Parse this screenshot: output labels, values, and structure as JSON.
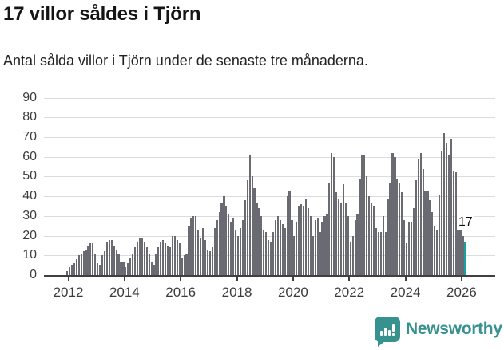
{
  "header": {
    "title": "17 villor såldes i Tjörn",
    "subtitle": "Antal sålda villor i Tjörn under de senaste tre månaderna."
  },
  "annotation": {
    "latest_label": "17"
  },
  "footer": {
    "brand": "Newsworthy"
  },
  "colors": {
    "bar": "#6a6a72",
    "highlight": "#16a0a0",
    "grid": "#dcdcdc",
    "axis": "#404040",
    "text": "#222222",
    "logo": "#37918e"
  },
  "chart_data": {
    "type": "bar",
    "title": "Antal sålda villor i Tjörn under de senaste tre månaderna",
    "frequency": "monthly",
    "x_range_estimate": "2011-12 to 2026-02",
    "x_tick_labels": [
      "2012",
      "2014",
      "2016",
      "2018",
      "2020",
      "2022",
      "2024",
      "2026"
    ],
    "y_ticks": [
      0,
      10,
      20,
      30,
      40,
      50,
      60,
      70,
      80,
      90
    ],
    "ylim": [
      0,
      90
    ],
    "grid": true,
    "values": [
      2,
      4,
      5,
      6,
      8,
      10,
      11,
      12,
      13,
      15,
      16,
      16,
      11,
      6,
      5,
      10,
      12,
      17,
      18,
      18,
      15,
      13,
      11,
      7,
      7,
      4,
      6,
      9,
      11,
      14,
      17,
      19,
      19,
      17,
      14,
      11,
      7,
      5,
      11,
      14,
      17,
      18,
      16,
      15,
      14,
      20,
      20,
      18,
      16,
      9,
      10,
      11,
      25,
      29,
      30,
      30,
      23,
      19,
      24,
      18,
      13,
      12,
      14,
      24,
      28,
      32,
      37,
      40,
      35,
      31,
      27,
      29,
      23,
      20,
      24,
      28,
      38,
      48,
      61,
      50,
      44,
      37,
      34,
      30,
      23,
      22,
      18,
      17,
      22,
      28,
      30,
      28,
      26,
      24,
      40,
      43,
      28,
      20,
      27,
      35,
      36,
      35,
      39,
      34,
      30,
      20,
      28,
      29,
      22,
      27,
      30,
      31,
      47,
      62,
      60,
      42,
      39,
      37,
      46,
      37,
      30,
      17,
      20,
      28,
      31,
      49,
      61,
      61,
      50,
      40,
      37,
      35,
      24,
      22,
      22,
      30,
      22,
      39,
      47,
      62,
      60,
      49,
      47,
      42,
      28,
      16,
      27,
      27,
      34,
      48,
      59,
      62,
      54,
      43,
      43,
      38,
      32,
      25,
      23,
      41,
      63,
      72,
      67,
      61,
      69,
      53,
      52,
      28,
      24,
      20,
      17
    ],
    "highlight_last": true,
    "highlight_value": 17
  }
}
